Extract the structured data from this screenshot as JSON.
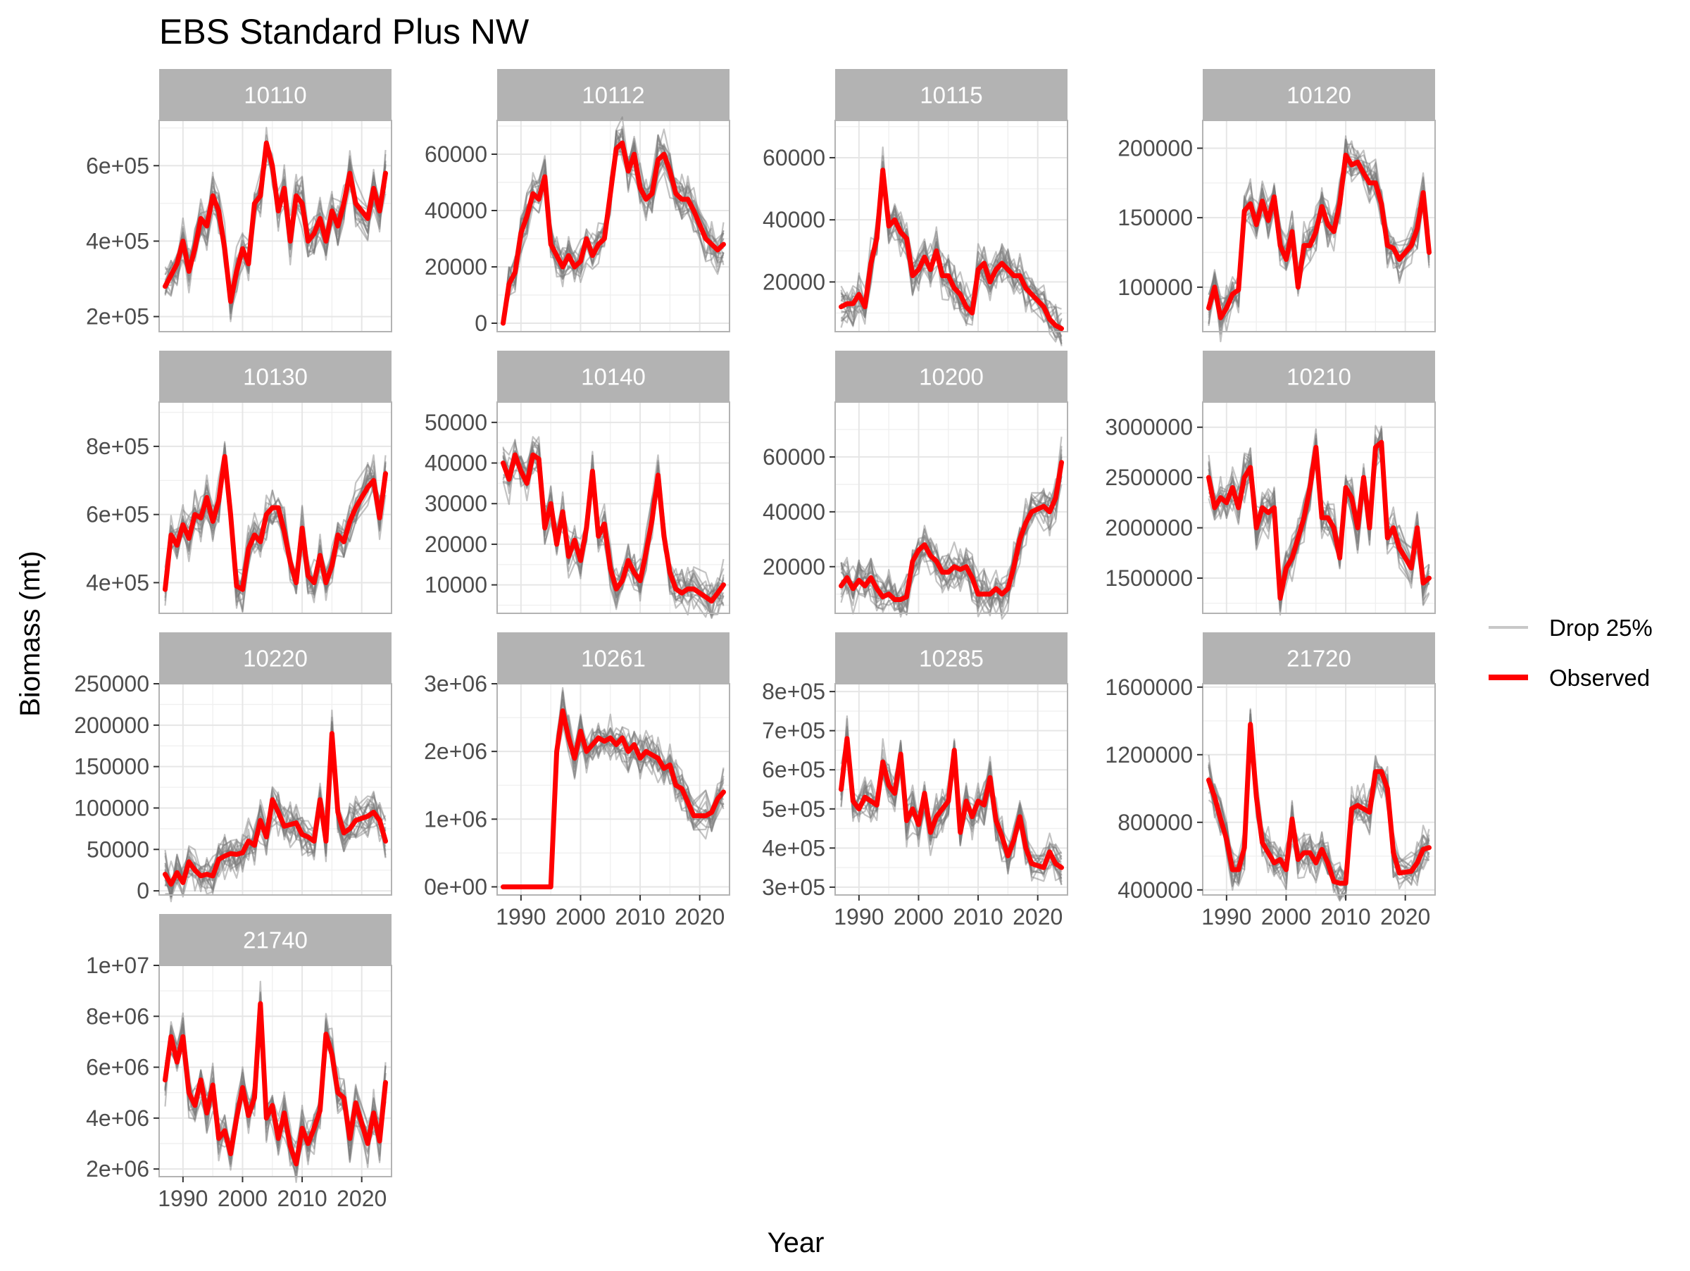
{
  "chart_data": {
    "type": "line",
    "title": "EBS Standard Plus NW",
    "xlabel": "Year",
    "ylabel": "Biomass (mt)",
    "legend": {
      "placement": "right",
      "entries": [
        {
          "label": "Drop 25%",
          "color": "#c8c8c8"
        },
        {
          "label": "Observed",
          "color": "#ff0000"
        }
      ]
    },
    "x_ticks": [
      "1990",
      "2000",
      "2010",
      "2020"
    ],
    "colors": {
      "observed": "#ff0000",
      "drop25": "#7a7a7a",
      "strip": "#b3b3b3",
      "grid": "#e6e6e6",
      "panel_border": "#b3b3b3"
    },
    "years": [
      1987,
      1988,
      1989,
      1990,
      1991,
      1992,
      1993,
      1994,
      1995,
      1996,
      1997,
      1998,
      1999,
      2000,
      2001,
      2002,
      2003,
      2004,
      2005,
      2006,
      2007,
      2008,
      2009,
      2010,
      2011,
      2012,
      2013,
      2014,
      2015,
      2016,
      2017,
      2018,
      2019,
      2021,
      2022,
      2023,
      2024
    ],
    "xlim": [
      1986,
      2025
    ],
    "panels": [
      {
        "id": "10110",
        "ylim": [
          160000,
          720000
        ],
        "y_ticks": [
          200000,
          400000,
          600000
        ],
        "y_tick_labels": [
          "2e+05",
          "4e+05",
          "6e+05"
        ],
        "observed": [
          280000,
          310000,
          340000,
          400000,
          320000,
          380000,
          460000,
          440000,
          520000,
          480000,
          380000,
          240000,
          320000,
          380000,
          340000,
          500000,
          520000,
          660000,
          600000,
          480000,
          540000,
          400000,
          520000,
          500000,
          400000,
          420000,
          460000,
          400000,
          480000,
          440000,
          500000,
          580000,
          500000,
          460000,
          540000,
          480000,
          580000
        ]
      },
      {
        "id": "10112",
        "ylim": [
          -3000,
          72000
        ],
        "y_ticks": [
          0,
          20000,
          40000,
          60000
        ],
        "y_tick_labels": [
          "0",
          "20000",
          "40000",
          "60000"
        ],
        "observed": [
          0,
          14000,
          18000,
          32000,
          38000,
          46000,
          44000,
          52000,
          28000,
          24000,
          20000,
          24000,
          20000,
          22000,
          30000,
          24000,
          28000,
          30000,
          46000,
          62000,
          64000,
          54000,
          60000,
          48000,
          44000,
          46000,
          58000,
          60000,
          54000,
          46000,
          44000,
          44000,
          40000,
          30000,
          28000,
          26000,
          28000
        ]
      },
      {
        "id": "10115",
        "ylim": [
          4000,
          72000
        ],
        "y_ticks": [
          20000,
          40000,
          60000
        ],
        "y_tick_labels": [
          "20000",
          "40000",
          "60000"
        ],
        "observed": [
          12000,
          13000,
          13000,
          16000,
          12000,
          26000,
          34000,
          56000,
          38000,
          40000,
          36000,
          34000,
          22000,
          24000,
          28000,
          24000,
          30000,
          22000,
          22000,
          18000,
          16000,
          12000,
          10000,
          24000,
          26000,
          20000,
          24000,
          26000,
          24000,
          22000,
          22000,
          18000,
          16000,
          12000,
          8000,
          6000,
          5000
        ]
      },
      {
        "id": "10120",
        "ylim": [
          68000,
          220000
        ],
        "y_ticks": [
          100000,
          150000,
          200000
        ],
        "y_tick_labels": [
          "100000",
          "150000",
          "200000"
        ],
        "observed": [
          85000,
          100000,
          78000,
          85000,
          95000,
          98000,
          155000,
          160000,
          145000,
          162000,
          148000,
          165000,
          130000,
          120000,
          140000,
          100000,
          130000,
          130000,
          140000,
          158000,
          145000,
          140000,
          160000,
          195000,
          188000,
          190000,
          182000,
          175000,
          175000,
          160000,
          130000,
          128000,
          120000,
          130000,
          142000,
          168000,
          125000
        ]
      },
      {
        "id": "10130",
        "ylim": [
          310000,
          930000
        ],
        "y_ticks": [
          400000,
          600000,
          800000
        ],
        "y_tick_labels": [
          "4e+05",
          "6e+05",
          "8e+05"
        ],
        "observed": [
          380000,
          540000,
          510000,
          570000,
          530000,
          600000,
          590000,
          650000,
          580000,
          640000,
          770000,
          600000,
          390000,
          380000,
          500000,
          540000,
          520000,
          600000,
          620000,
          620000,
          550000,
          460000,
          400000,
          560000,
          420000,
          400000,
          480000,
          400000,
          450000,
          540000,
          520000,
          580000,
          620000,
          680000,
          700000,
          590000,
          720000
        ]
      },
      {
        "id": "10140",
        "ylim": [
          3000,
          55000
        ],
        "y_ticks": [
          10000,
          20000,
          30000,
          40000,
          50000
        ],
        "y_tick_labels": [
          "10000",
          "20000",
          "30000",
          "40000",
          "50000"
        ],
        "observed": [
          40000,
          36000,
          42000,
          38000,
          35000,
          42000,
          41000,
          24000,
          30000,
          20000,
          28000,
          17000,
          21000,
          16000,
          24000,
          38000,
          22000,
          25000,
          14000,
          9000,
          11000,
          16000,
          13000,
          11000,
          18000,
          26000,
          37000,
          22000,
          13000,
          9000,
          8000,
          9000,
          9000,
          7000,
          6000,
          8000,
          10000
        ]
      },
      {
        "id": "10200",
        "ylim": [
          3000,
          80000
        ],
        "y_ticks": [
          20000,
          40000,
          60000
        ],
        "y_tick_labels": [
          "20000",
          "40000",
          "60000"
        ],
        "observed": [
          13000,
          16000,
          12000,
          15000,
          13000,
          16000,
          12000,
          9000,
          10000,
          8000,
          8000,
          9000,
          22000,
          26000,
          28000,
          24000,
          22000,
          18000,
          18000,
          20000,
          19000,
          20000,
          16000,
          10000,
          10000,
          10000,
          12000,
          10000,
          12000,
          20000,
          30000,
          36000,
          40000,
          42000,
          40000,
          45000,
          58000
        ]
      },
      {
        "id": "10210",
        "ylim": [
          1150000,
          3250000
        ],
        "y_ticks": [
          1500000,
          2000000,
          2500000,
          3000000
        ],
        "y_tick_labels": [
          "1500000",
          "2000000",
          "2500000",
          "3000000"
        ],
        "observed": [
          2500000,
          2200000,
          2300000,
          2250000,
          2400000,
          2200000,
          2500000,
          2600000,
          2000000,
          2200000,
          2150000,
          2200000,
          1300000,
          1600000,
          1700000,
          1900000,
          2100000,
          2400000,
          2800000,
          2100000,
          2100000,
          2000000,
          1700000,
          2400000,
          2300000,
          2000000,
          2500000,
          2000000,
          2800000,
          2850000,
          1900000,
          2000000,
          1800000,
          1600000,
          2000000,
          1450000,
          1500000
        ]
      },
      {
        "id": "10220",
        "ylim": [
          -5000,
          250000
        ],
        "y_ticks": [
          0,
          50000,
          100000,
          150000,
          200000,
          250000
        ],
        "y_tick_labels": [
          "0",
          "50000",
          "100000",
          "150000",
          "200000",
          "250000"
        ],
        "observed": [
          20000,
          8000,
          22000,
          10000,
          35000,
          25000,
          18000,
          20000,
          18000,
          38000,
          42000,
          45000,
          44000,
          46000,
          60000,
          55000,
          85000,
          65000,
          110000,
          95000,
          78000,
          80000,
          82000,
          68000,
          65000,
          60000,
          110000,
          60000,
          190000,
          95000,
          70000,
          75000,
          85000,
          90000,
          95000,
          85000,
          60000
        ]
      },
      {
        "id": "10261",
        "ylim": [
          -120000,
          3000000
        ],
        "y_ticks": [
          0,
          1000000,
          2000000,
          3000000
        ],
        "y_tick_labels": [
          "0e+00",
          "1e+06",
          "2e+06",
          "3e+06"
        ],
        "observed": [
          0,
          0,
          0,
          0,
          0,
          0,
          0,
          0,
          0,
          2000000,
          2600000,
          2200000,
          1900000,
          2300000,
          2000000,
          2100000,
          2200000,
          2150000,
          2200000,
          2100000,
          2200000,
          2000000,
          2100000,
          1900000,
          2000000,
          1950000,
          1900000,
          1750000,
          1800000,
          1500000,
          1450000,
          1250000,
          1050000,
          1050000,
          1100000,
          1300000,
          1400000
        ]
      },
      {
        "id": "10285",
        "ylim": [
          280000,
          820000
        ],
        "y_ticks": [
          300000,
          400000,
          500000,
          600000,
          700000,
          800000
        ],
        "y_tick_labels": [
          "3e+05",
          "4e+05",
          "5e+05",
          "6e+05",
          "7e+05",
          "8e+05"
        ],
        "observed": [
          550000,
          680000,
          520000,
          500000,
          530000,
          520000,
          510000,
          620000,
          560000,
          540000,
          640000,
          470000,
          500000,
          460000,
          540000,
          440000,
          480000,
          500000,
          520000,
          650000,
          440000,
          520000,
          480000,
          520000,
          510000,
          580000,
          470000,
          430000,
          380000,
          420000,
          480000,
          400000,
          360000,
          350000,
          390000,
          360000,
          350000
        ]
      },
      {
        "id": "21720",
        "ylim": [
          370000,
          1620000
        ],
        "y_ticks": [
          400000,
          800000,
          1200000,
          1600000
        ],
        "y_tick_labels": [
          "400000",
          "800000",
          "1200000",
          "1600000"
        ],
        "observed": [
          1050000,
          950000,
          820000,
          700000,
          520000,
          520000,
          650000,
          1380000,
          950000,
          680000,
          620000,
          560000,
          580000,
          520000,
          820000,
          580000,
          620000,
          620000,
          560000,
          640000,
          560000,
          450000,
          440000,
          440000,
          880000,
          900000,
          880000,
          860000,
          1100000,
          1100000,
          1000000,
          620000,
          500000,
          510000,
          560000,
          640000,
          650000
        ]
      },
      {
        "id": "21740",
        "ylim": [
          1700000,
          10000000
        ],
        "y_ticks": [
          2000000,
          4000000,
          6000000,
          8000000,
          10000000
        ],
        "y_tick_labels": [
          "2e+06",
          "4e+06",
          "6e+06",
          "8e+06",
          "1e+07"
        ],
        "observed": [
          5500000,
          7200000,
          6200000,
          7200000,
          5000000,
          4500000,
          5500000,
          4200000,
          5300000,
          3200000,
          3500000,
          2600000,
          4000000,
          5200000,
          4100000,
          4800000,
          8500000,
          4000000,
          4500000,
          3200000,
          4200000,
          2900000,
          2200000,
          3600000,
          3000000,
          3600000,
          4300000,
          7300000,
          6500000,
          5000000,
          4800000,
          3200000,
          4600000,
          3000000,
          4200000,
          3100000,
          5400000
        ]
      }
    ]
  }
}
